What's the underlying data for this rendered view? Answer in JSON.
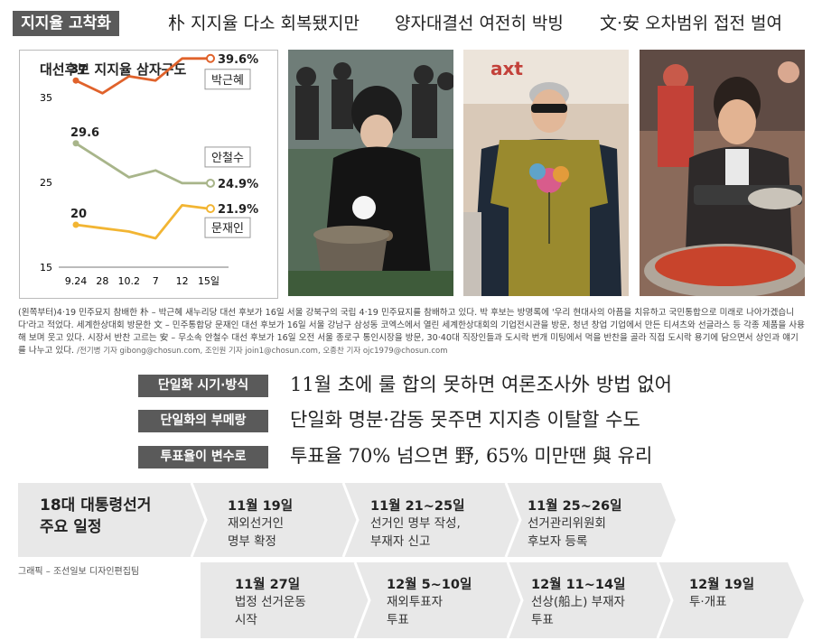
{
  "header": {
    "tag": "지지율 고착화",
    "headlines": [
      "朴 지지율 다소 회복됐지만",
      "양자대결선 여전히 박빙",
      "文·安 오차범위 접전 벌여"
    ]
  },
  "chart_data": {
    "type": "line",
    "title": "대선후보 지지율 삼자구도",
    "categories": [
      "9.24",
      "28",
      "10.2",
      "7",
      "12",
      "15일"
    ],
    "y_ticks": [
      35,
      25,
      15
    ],
    "series": [
      {
        "name": "박근혜",
        "values": [
          37,
          35.5,
          37.5,
          37,
          39.6,
          39.6
        ],
        "color": "#e0622b",
        "start_label": "37",
        "end_label": "39.6%"
      },
      {
        "name": "안철수",
        "values": [
          29.6,
          27.6,
          25.6,
          26.4,
          24.9,
          24.9
        ],
        "color": "#a8b58a",
        "start_label": "29.6",
        "end_label": "24.9%"
      },
      {
        "name": "문재인",
        "values": [
          20,
          19.6,
          19.2,
          18.4,
          22.3,
          21.9
        ],
        "color": "#f2b533",
        "start_label": "20",
        "end_label": "21.9%"
      }
    ]
  },
  "photos": [
    {
      "icon": "park-geun-hye-photo"
    },
    {
      "icon": "moon-jae-in-photo"
    },
    {
      "icon": "ahn-cheol-soo-photo"
    }
  ],
  "caption": {
    "text": "(왼쪽부터)4·19 민주묘지 참배한 朴 – 박근혜 새누리당 대선 후보가 16일 서울 강북구의 국립 4·19 민주묘지를 참배하고 있다. 박 후보는 방명록에 '우리 현대사의 아픔을 치유하고 국민통합으로 미래로 나아가겠습니다'라고 적었다. 세계한상대회 방문한 文 – 민주통합당 문재인 대선 후보가 16일 서울 강남구 삼성동 코엑스에서 열린 세계한상대회의 기업전시관을 방문, 청년 창업 기업에서 만든 티셔츠와 선글라스 등 각종 제품을 사용해 보며 웃고 있다. 시장서 반찬 고르는 安 – 무소속 안철수 대선 후보가 16일 오전 서울 종로구 통인시장을 방문, 30·40대 직장인들과 도시락 번개 미팅에서 먹을 반찬을 골라 직접 도시락 용기에 담으면서 상인과 얘기를 나누고 있다.",
    "credit": "/전기병 기자 gibong@chosun.com, 조인원 기자 join1@chosun.com, 오종찬 기자 ojc1979@chosun.com"
  },
  "issues": [
    {
      "label": "단일화 시기·방식",
      "text": "11월 초에 룰 합의 못하면 여론조사外 방법 없어"
    },
    {
      "label": "단일화의 부메랑",
      "text": "단일화 명분·감동 못주면 지지층 이탈할 수도"
    },
    {
      "label": "투표율이 변수로",
      "text": "투표율 70% 넘으면 野, 65% 미만땐 與 유리"
    }
  ],
  "schedule": {
    "title": "18대 대통령선거 주요 일정",
    "title_lines": [
      "18대 대통령선거",
      "주요 일정"
    ],
    "row1": [
      {
        "date": "11월 19일",
        "lines": [
          "재외선거인",
          "명부 확정"
        ]
      },
      {
        "date": "11월 21~25일",
        "lines": [
          "선거인 명부 작성,",
          "부재자 신고"
        ]
      },
      {
        "date": "11월 25~26일",
        "lines": [
          "선거관리위원회",
          "후보자 등록"
        ]
      }
    ],
    "row2": [
      {
        "date": "11월 27일",
        "lines": [
          "법정 선거운동",
          "시작"
        ]
      },
      {
        "date": "12월 5~10일",
        "lines": [
          "재외투표자",
          "투표"
        ]
      },
      {
        "date": "12월 11~14일",
        "lines": [
          "선상(船上) 부재자",
          "투표"
        ]
      },
      {
        "date": "12월 19일",
        "lines": [
          "투·개표"
        ]
      }
    ]
  },
  "graphic_credit": "그래픽 – 조선일보 디자인편집팀",
  "colors": {
    "tag_bg": "#5a5a5a",
    "band": "#e8e8e8",
    "park": "#e0622b",
    "ahn": "#a8b58a",
    "moon": "#f2b533"
  }
}
